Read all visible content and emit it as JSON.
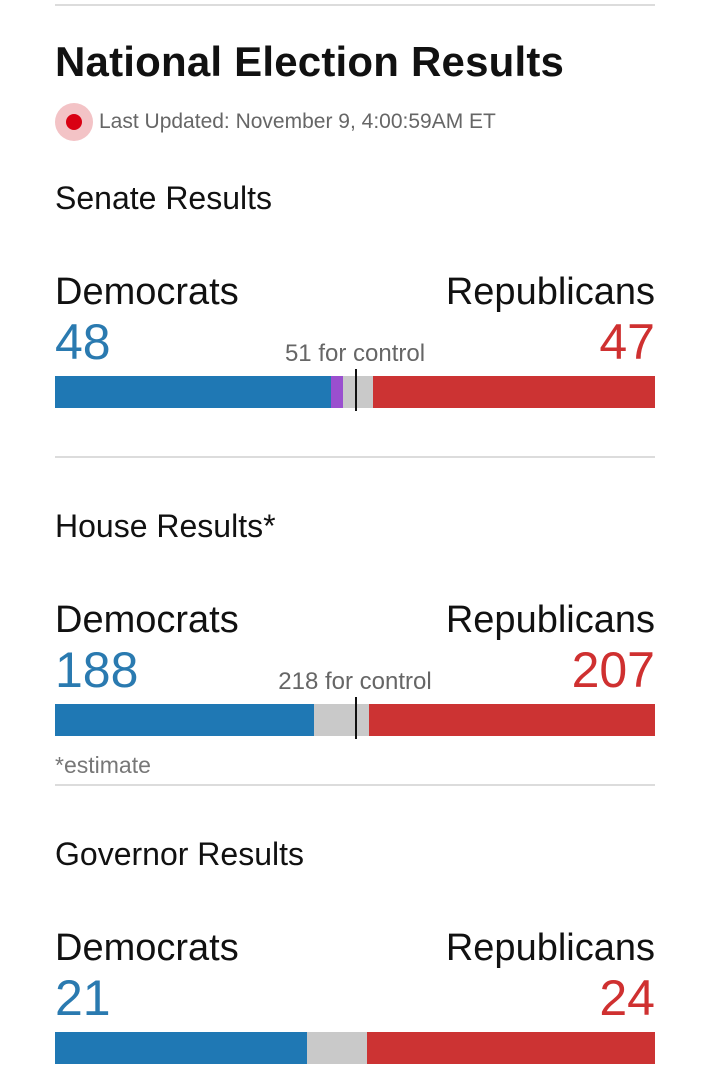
{
  "page": {
    "title": "National Election Results",
    "last_updated": "Last Updated: November 9, 4:00:59AM ET",
    "live_indicator_icon": "live-dot-icon"
  },
  "colors": {
    "democrat": "#1f78b4",
    "republican": "#cc3333",
    "independent": "#9a4fcf",
    "undecided": "#c9c9c9"
  },
  "senate": {
    "title": "Senate Results",
    "dem_label": "Democrats",
    "rep_label": "Republicans",
    "dem_count": "48",
    "rep_count": "47",
    "control": "51 for control",
    "bar": {
      "dem": 46,
      "ind": 2,
      "undecided": 5,
      "rep": 47
    }
  },
  "house": {
    "title": "House Results*",
    "dem_label": "Democrats",
    "rep_label": "Republicans",
    "dem_count": "188",
    "rep_count": "207",
    "control": "218 for control",
    "note": "*estimate",
    "bar": {
      "dem": 188,
      "undecided": 40,
      "rep": 207
    }
  },
  "governor": {
    "title": "Governor Results",
    "dem_label": "Democrats",
    "rep_label": "Republicans",
    "dem_count": "21",
    "rep_count": "24",
    "bar": {
      "dem": 21,
      "undecided": 5,
      "rep": 24
    }
  }
}
